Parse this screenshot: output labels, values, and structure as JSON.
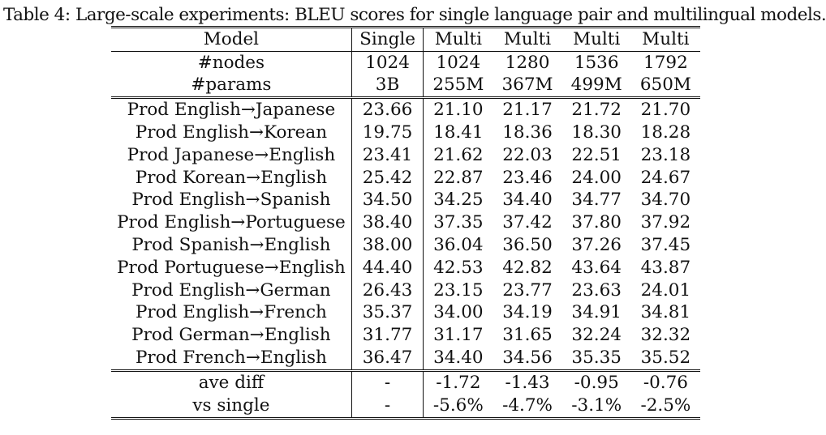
{
  "caption": "Table 4: Large-scale experiments: BLEU scores for single language pair and multilingual models.",
  "header": [
    "Model",
    "Single",
    "Multi",
    "Multi",
    "Multi",
    "Multi"
  ],
  "config_rows": [
    [
      "#nodes",
      "1024",
      "1024",
      "1280",
      "1536",
      "1792"
    ],
    [
      "#params",
      "3B",
      "255M",
      "367M",
      "499M",
      "650M"
    ]
  ],
  "rows": [
    [
      "Prod English→Japanese",
      "23.66",
      "21.10",
      "21.17",
      "21.72",
      "21.70"
    ],
    [
      "Prod English→Korean",
      "19.75",
      "18.41",
      "18.36",
      "18.30",
      "18.28"
    ],
    [
      "Prod Japanese→English",
      "23.41",
      "21.62",
      "22.03",
      "22.51",
      "23.18"
    ],
    [
      "Prod Korean→English",
      "25.42",
      "22.87",
      "23.46",
      "24.00",
      "24.67"
    ],
    [
      "Prod English→Spanish",
      "34.50",
      "34.25",
      "34.40",
      "34.77",
      "34.70"
    ],
    [
      "Prod English→Portuguese",
      "38.40",
      "37.35",
      "37.42",
      "37.80",
      "37.92"
    ],
    [
      "Prod Spanish→English",
      "38.00",
      "36.04",
      "36.50",
      "37.26",
      "37.45"
    ],
    [
      "Prod Portuguese→English",
      "44.40",
      "42.53",
      "42.82",
      "43.64",
      "43.87"
    ],
    [
      "Prod English→German",
      "26.43",
      "23.15",
      "23.77",
      "23.63",
      "24.01"
    ],
    [
      "Prod English→French",
      "35.37",
      "34.00",
      "34.19",
      "34.91",
      "34.81"
    ],
    [
      "Prod German→English",
      "31.77",
      "31.17",
      "31.65",
      "32.24",
      "32.32"
    ],
    [
      "Prod French→English",
      "36.47",
      "34.40",
      "34.56",
      "35.35",
      "35.52"
    ]
  ],
  "summary_rows": [
    [
      "ave diff",
      "-",
      "-1.72",
      "-1.43",
      "-0.95",
      "-0.76"
    ],
    [
      "vs single",
      "-",
      "-5.6%",
      "-4.7%",
      "-3.1%",
      "-2.5%"
    ]
  ]
}
